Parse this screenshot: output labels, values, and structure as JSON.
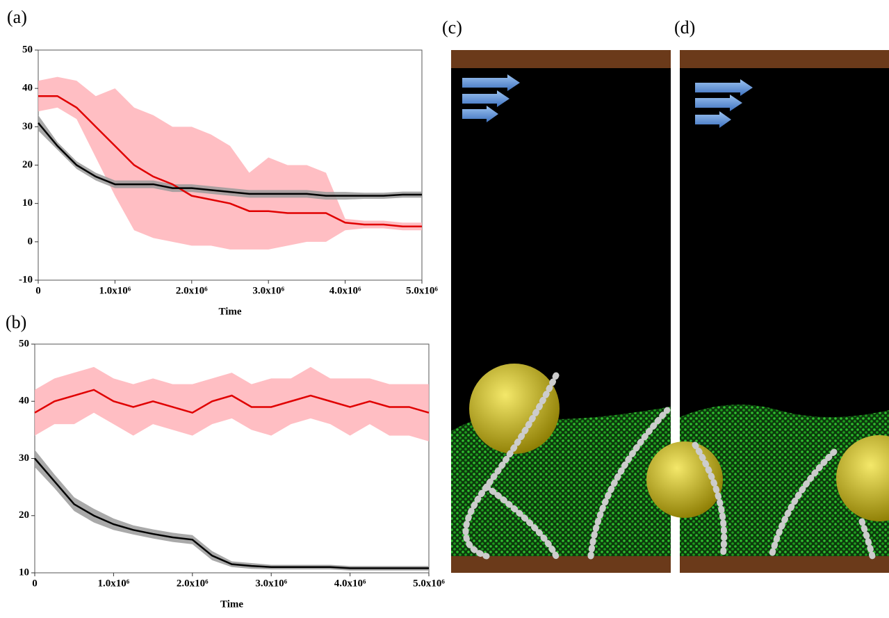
{
  "panel_labels": [
    "(a)",
    "(b)",
    "(c)",
    "(d)"
  ],
  "chart_data": [
    {
      "type": "line",
      "x_label": "Time",
      "x": [
        0,
        250000,
        500000,
        750000,
        1000000,
        1250000,
        1500000,
        1750000,
        2000000,
        2250000,
        2500000,
        2750000,
        3000000,
        3250000,
        3500000,
        3750000,
        4000000,
        4250000,
        4500000,
        4750000,
        5000000
      ],
      "xlim": [
        0,
        5000000
      ],
      "xticks": [
        0,
        {
          "value": 1000000,
          "label": "1.0x10⁶"
        },
        {
          "value": 2000000,
          "label": "2.0x10⁶"
        },
        {
          "value": 3000000,
          "label": "3.0x10⁶"
        },
        {
          "value": 4000000,
          "label": "4.0x10⁶"
        },
        {
          "value": 5000000,
          "label": "5.0x10⁶"
        }
      ],
      "ylim": [
        -10,
        50
      ],
      "yticks": [
        -10,
        0,
        10,
        20,
        30,
        40,
        50
      ],
      "series": [
        {
          "color": "#e00000",
          "band_color": "#ffb3b8",
          "values": [
            38,
            38,
            35,
            30,
            25,
            20,
            17,
            15,
            12,
            11,
            10,
            8,
            8,
            7.5,
            7.5,
            7.5,
            5,
            4.5,
            4.5,
            4,
            4
          ],
          "band_lower": [
            34,
            35,
            32,
            22,
            12,
            3,
            1,
            0,
            -1,
            -1,
            -2,
            -2,
            -2,
            -1,
            0,
            0,
            3,
            3.5,
            3.5,
            3,
            3
          ],
          "band_upper": [
            42,
            43,
            42,
            38,
            40,
            35,
            33,
            30,
            30,
            28,
            25,
            18,
            22,
            20,
            20,
            18,
            6,
            5.5,
            5.5,
            5,
            5
          ]
        },
        {
          "color": "#000000",
          "band_color": "#9a9a9a",
          "values": [
            31,
            25,
            20,
            17,
            15,
            15,
            15,
            14,
            14,
            13.5,
            13,
            12.5,
            12.5,
            12.5,
            12.5,
            12,
            12,
            12,
            12,
            12.3,
            12.3
          ],
          "band_lower": [
            29,
            24,
            19,
            16,
            14,
            14,
            14,
            13,
            13,
            12.5,
            12,
            11.5,
            11.5,
            11.5,
            11.5,
            11,
            11,
            11.2,
            11.2,
            11.5,
            11.5
          ],
          "band_upper": [
            33,
            26,
            21,
            18,
            16,
            16,
            16,
            15,
            15,
            14.5,
            14,
            13.5,
            13.5,
            13.5,
            13.5,
            13,
            13,
            12.8,
            12.8,
            13.1,
            13.1
          ]
        }
      ]
    },
    {
      "type": "line",
      "x_label": "Time",
      "x": [
        0,
        250000,
        500000,
        750000,
        1000000,
        1250000,
        1500000,
        1750000,
        2000000,
        2250000,
        2500000,
        2750000,
        3000000,
        3250000,
        3500000,
        3750000,
        4000000,
        4250000,
        4500000,
        4750000,
        5000000
      ],
      "xlim": [
        0,
        5000000
      ],
      "xticks": [
        0,
        {
          "value": 1000000,
          "label": "1.0x10⁶"
        },
        {
          "value": 2000000,
          "label": "2.0x10⁶"
        },
        {
          "value": 3000000,
          "label": "3.0x10⁶"
        },
        {
          "value": 4000000,
          "label": "4.0x10⁶"
        },
        {
          "value": 5000000,
          "label": "5.0x10⁶"
        }
      ],
      "ylim": [
        10,
        50
      ],
      "yticks": [
        10,
        20,
        30,
        40,
        50
      ],
      "series": [
        {
          "color": "#e00000",
          "band_color": "#ffb3b8",
          "values": [
            38,
            40,
            41,
            42,
            40,
            39,
            40,
            39,
            38,
            40,
            41,
            39,
            39,
            40,
            41,
            40,
            39,
            40,
            39,
            39,
            38
          ],
          "band_lower": [
            34,
            36,
            36,
            38,
            36,
            34,
            36,
            35,
            34,
            36,
            37,
            35,
            34,
            36,
            37,
            36,
            34,
            36,
            34,
            34,
            33
          ],
          "band_upper": [
            42,
            44,
            45,
            46,
            44,
            43,
            44,
            43,
            43,
            44,
            45,
            43,
            44,
            44,
            46,
            44,
            44,
            44,
            43,
            43,
            43
          ]
        },
        {
          "color": "#000000",
          "band_color": "#9a9a9a",
          "values": [
            30,
            26,
            22,
            20,
            18.5,
            17.5,
            16.8,
            16.2,
            15.8,
            13,
            11.5,
            11.2,
            11,
            11,
            11,
            11,
            10.8,
            10.8,
            10.8,
            10.8,
            10.8
          ],
          "band_lower": [
            28.5,
            24.8,
            20.8,
            18.8,
            17.5,
            16.7,
            16,
            15.4,
            15,
            12.2,
            11,
            10.7,
            10.6,
            10.6,
            10.6,
            10.6,
            10.4,
            10.4,
            10.4,
            10.4,
            10.4
          ],
          "band_upper": [
            31.5,
            27.2,
            23.2,
            21.2,
            19.5,
            18.3,
            17.6,
            17,
            16.6,
            13.8,
            12,
            11.7,
            11.4,
            11.4,
            11.4,
            11.4,
            11.2,
            11.2,
            11.2,
            11.2,
            11.2
          ]
        }
      ]
    }
  ]
}
